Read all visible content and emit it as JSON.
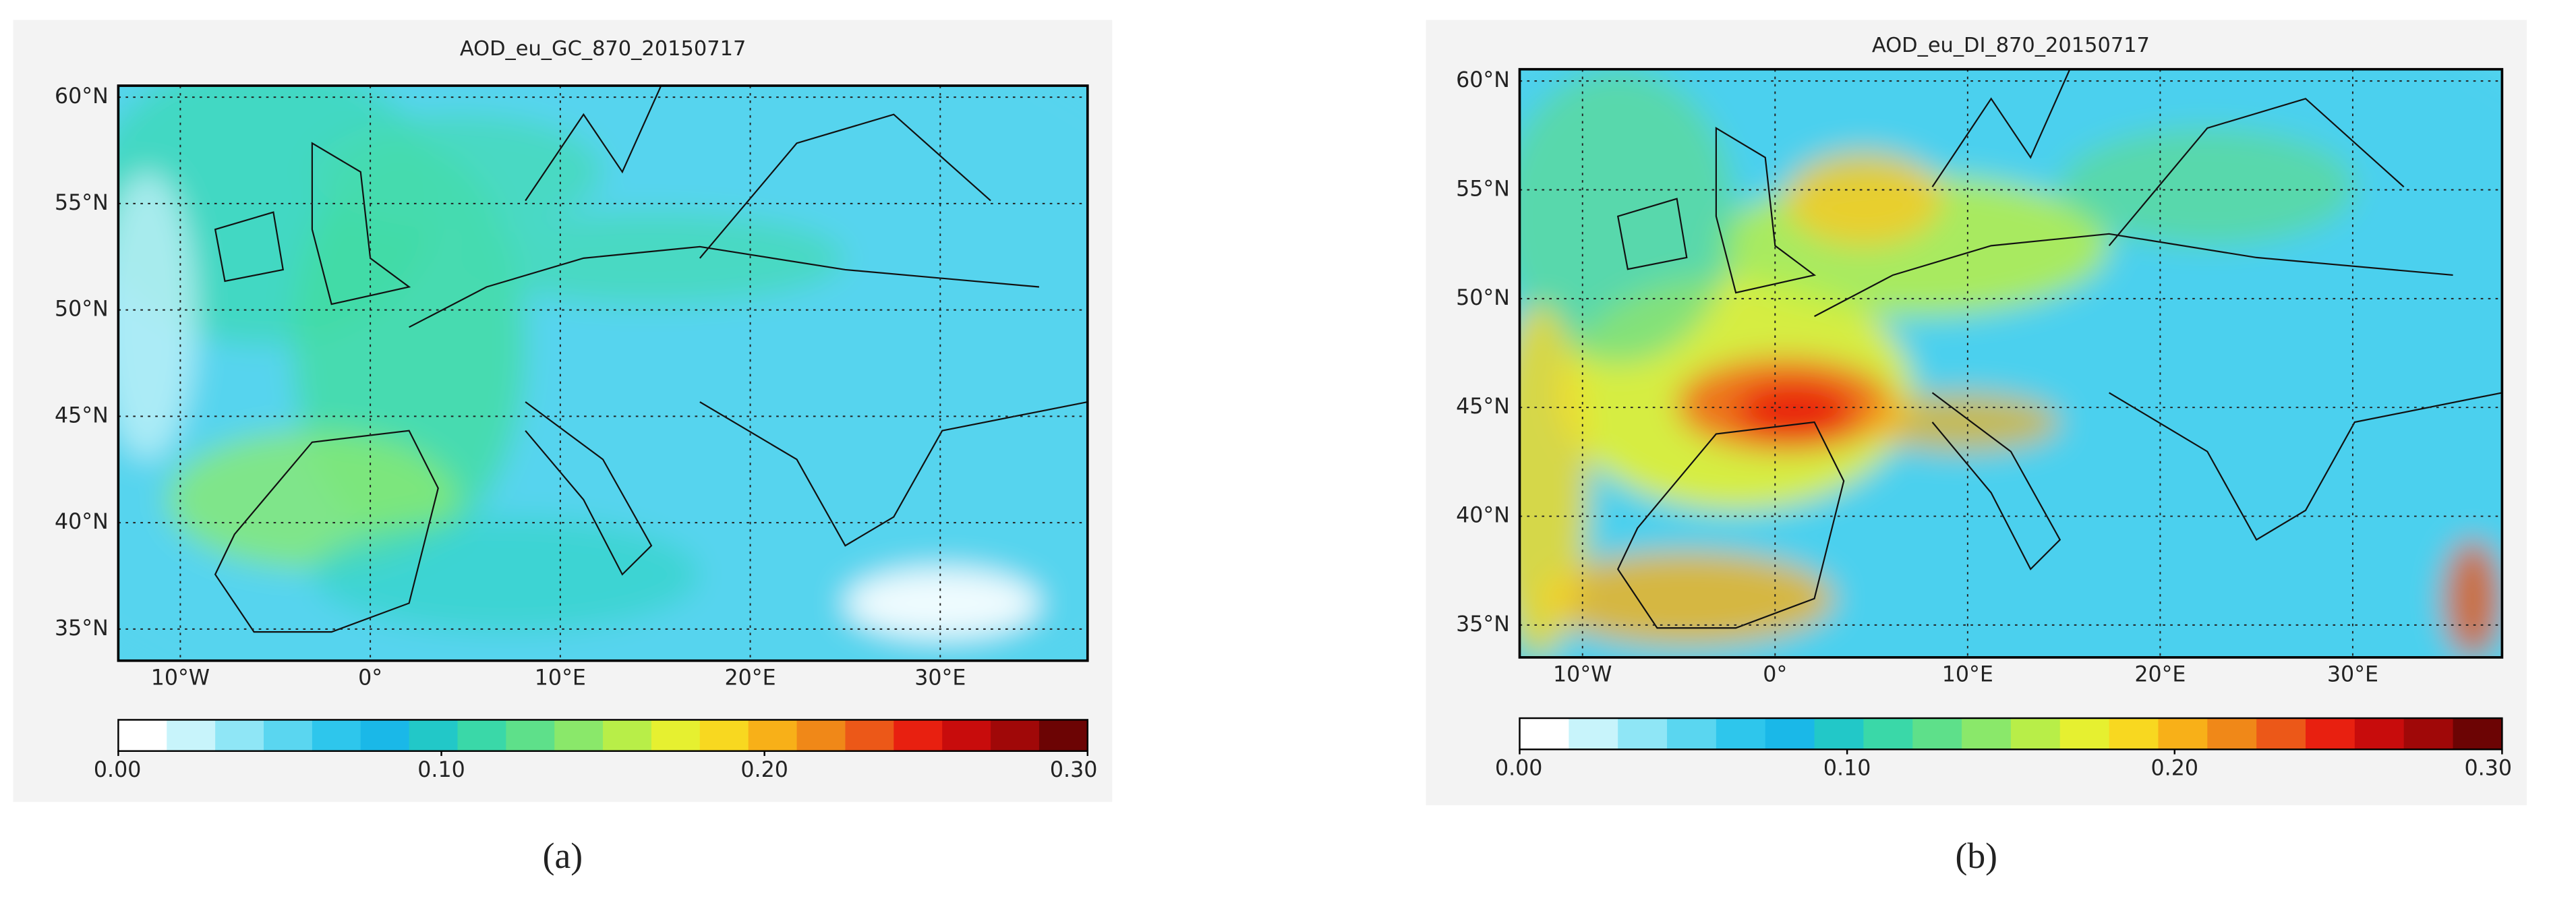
{
  "panels": [
    {
      "title": "AOD_eu_GC_870_20150717",
      "lat_labels": [
        "60°N",
        "55°N",
        "50°N",
        "45°N",
        "40°N",
        "35°N"
      ],
      "lon_labels": [
        "10°W",
        "0°",
        "10°E",
        "20°E",
        "30°E"
      ],
      "colorbar": {
        "lim": [
          0,
          0.3
        ],
        "ticks": [
          {
            "value": 0,
            "label": "0.00"
          },
          {
            "value": 0.1,
            "label": "0.10"
          },
          {
            "value": 0.2,
            "label": "0.20"
          },
          {
            "value": 0.3,
            "label": "0.30"
          }
        ],
        "colors": [
          "#ffffff",
          "#c8f4fb",
          "#8fe6f6",
          "#5ad6f0",
          "#2ec6ec",
          "#1ab8e8",
          "#22c8c8",
          "#3ad8a8",
          "#5ee08a",
          "#8ae86a",
          "#b8ee48",
          "#e6f030",
          "#f8d820",
          "#f8b018",
          "#f08818",
          "#ec5818",
          "#e82010",
          "#c80c0c",
          "#a00808",
          "#6c0404"
        ]
      },
      "caption": "(a)"
    },
    {
      "title": "AOD_eu_DI_870_20150717",
      "lat_labels": [
        "60°N",
        "55°N",
        "50°N",
        "45°N",
        "40°N",
        "35°N"
      ],
      "lon_labels": [
        "10°W",
        "0°",
        "10°E",
        "20°E",
        "30°E"
      ],
      "colorbar": {
        "lim": [
          0,
          0.3
        ],
        "ticks": [
          {
            "value": 0,
            "label": "0.00"
          },
          {
            "value": 0.1,
            "label": "0.10"
          },
          {
            "value": 0.2,
            "label": "0.20"
          },
          {
            "value": 0.3,
            "label": "0.30"
          }
        ],
        "colors": [
          "#ffffff",
          "#c8f4fb",
          "#8fe6f6",
          "#5ad6f0",
          "#2ec6ec",
          "#1ab8e8",
          "#22c8c8",
          "#3ad8a8",
          "#5ee08a",
          "#8ae86a",
          "#b8ee48",
          "#e6f030",
          "#f8d820",
          "#f8b018",
          "#f08818",
          "#ec5818",
          "#e82010",
          "#c80c0c",
          "#a00808",
          "#6c0404"
        ]
      },
      "caption": "(b)"
    }
  ]
}
